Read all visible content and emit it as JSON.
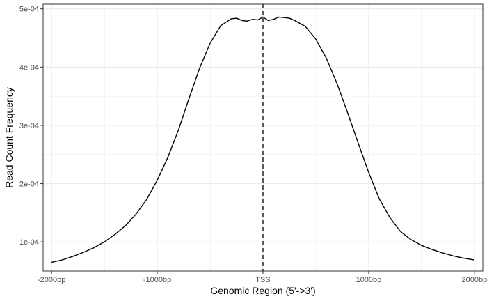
{
  "chart_data": {
    "type": "line",
    "title": "",
    "xlabel": "Genomic Region (5'->3')",
    "ylabel": "Read Count Frequency",
    "xlim": [
      -2080,
      2080
    ],
    "ylim": [
      5e-05,
      0.000508
    ],
    "x_ticks": [
      {
        "value": -2000,
        "label": "-2000bp"
      },
      {
        "value": -1000,
        "label": "-1000bp"
      },
      {
        "value": 0,
        "label": "TSS"
      },
      {
        "value": 1000,
        "label": "1000bp"
      },
      {
        "value": 2000,
        "label": "2000bp"
      }
    ],
    "y_ticks": [
      {
        "value": 0.0001,
        "label": "1e-04"
      },
      {
        "value": 0.0002,
        "label": "2e-04"
      },
      {
        "value": 0.0003,
        "label": "3e-04"
      },
      {
        "value": 0.0004,
        "label": "4e-04"
      },
      {
        "value": 0.0005,
        "label": "5e-04"
      }
    ],
    "vline": {
      "x": 0,
      "style": "dashed",
      "color": "#333333"
    },
    "grid": true,
    "colors": {
      "line": "#000000",
      "grid": "#ebebeb",
      "panel_border": "#333333"
    },
    "series": [
      {
        "x": [
          -2000,
          -1900,
          -1800,
          -1700,
          -1600,
          -1500,
          -1400,
          -1300,
          -1200,
          -1100,
          -1000,
          -900,
          -800,
          -700,
          -600,
          -500,
          -400,
          -300,
          -250,
          -200,
          -150,
          -100,
          -50,
          0,
          50,
          100,
          150,
          200,
          250,
          300,
          400,
          500,
          600,
          700,
          800,
          900,
          1000,
          1100,
          1200,
          1300,
          1400,
          1500,
          1600,
          1700,
          1800,
          1900,
          2000
        ],
        "y": [
          6.5e-05,
          6.9e-05,
          7.5e-05,
          8.2e-05,
          9e-05,
          0.0001,
          0.000113,
          0.000128,
          0.000148,
          0.000173,
          0.000206,
          0.000245,
          0.000292,
          0.000346,
          0.000398,
          0.000441,
          0.000471,
          0.000483,
          0.000484,
          0.00048,
          0.000479,
          0.000482,
          0.000481,
          0.000486,
          0.00048,
          0.000482,
          0.000486,
          0.000485,
          0.000484,
          0.00048,
          0.00047,
          0.000448,
          0.000415,
          0.000372,
          0.000322,
          0.00027,
          0.000219,
          0.000174,
          0.000142,
          0.000118,
          0.000104,
          9.4e-05,
          8.7e-05,
          8.1e-05,
          7.6e-05,
          7.2e-05,
          6.9e-05
        ]
      }
    ]
  }
}
